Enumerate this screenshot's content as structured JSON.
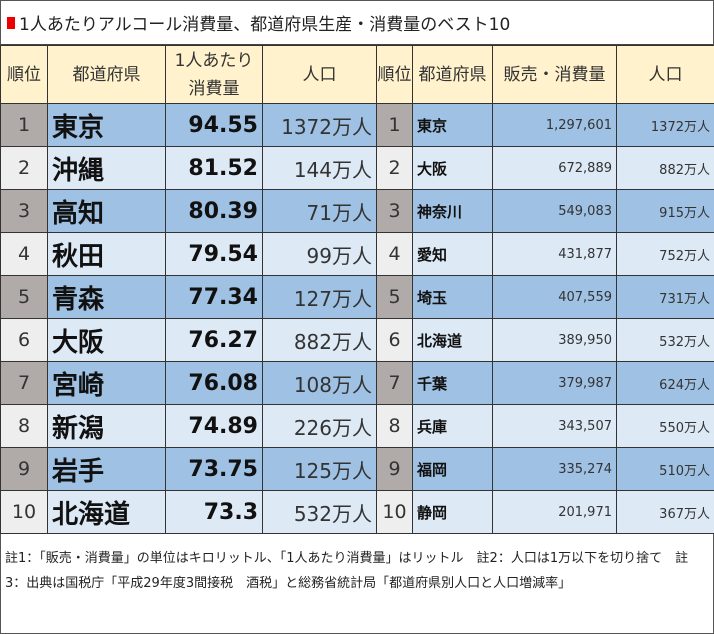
{
  "title": "1人あたりアルコール消費量、都道府県生産・消費量のベスト10",
  "headers": [
    "順位",
    "都道府県",
    "1人あたり消費量",
    "人口",
    "順位",
    "都道府県",
    "販売・消費量",
    "人口"
  ],
  "rows": [
    {
      "rank": "1",
      "pref": "東京",
      "per_capita": "94.55",
      "pop": "1372万人",
      "rank2": "1",
      "pref2": "東京",
      "sales": "1,297,601",
      "pop2": "1372万人"
    },
    {
      "rank": "2",
      "pref": "沖縄",
      "per_capita": "81.52",
      "pop": "144万人",
      "rank2": "2",
      "pref2": "大阪",
      "sales": "672,889",
      "pop2": "882万人"
    },
    {
      "rank": "3",
      "pref": "高知",
      "per_capita": "80.39",
      "pop": "71万人",
      "rank2": "3",
      "pref2": "神奈川",
      "sales": "549,083",
      "pop2": "915万人"
    },
    {
      "rank": "4",
      "pref": "秋田",
      "per_capita": "79.54",
      "pop": "99万人",
      "rank2": "4",
      "pref2": "愛知",
      "sales": "431,877",
      "pop2": "752万人"
    },
    {
      "rank": "5",
      "pref": "青森",
      "per_capita": "77.34",
      "pop": "127万人",
      "rank2": "5",
      "pref2": "埼玉",
      "sales": "407,559",
      "pop2": "731万人"
    },
    {
      "rank": "6",
      "pref": "大阪",
      "per_capita": "76.27",
      "pop": "882万人",
      "rank2": "6",
      "pref2": "北海道",
      "sales": "389,950",
      "pop2": "532万人"
    },
    {
      "rank": "7",
      "pref": "宮崎",
      "per_capita": "76.08",
      "pop": "108万人",
      "rank2": "7",
      "pref2": "千葉",
      "sales": "379,987",
      "pop2": "624万人"
    },
    {
      "rank": "8",
      "pref": "新潟",
      "per_capita": "74.89",
      "pop": "226万人",
      "rank2": "8",
      "pref2": "兵庫",
      "sales": "343,507",
      "pop2": "550万人"
    },
    {
      "rank": "9",
      "pref": "岩手",
      "per_capita": "73.75",
      "pop": "125万人",
      "rank2": "9",
      "pref2": "福岡",
      "sales": "335,274",
      "pop2": "510万人"
    },
    {
      "rank": "10",
      "pref": "北海道",
      "per_capita": "73.3",
      "pop": "532万人",
      "rank2": "10",
      "pref2": "静岡",
      "sales": "201,971",
      "pop2": "367万人"
    }
  ],
  "note": "註1：「販売・消費量」の単位はキロリットル、「1人あたり消費量」はリットル　註2：人口は1万以下を切り捨て　註3：出典は国税庁「平成29年度3間接税　酒税」と総務省統計局「都道府県別人口と人口増減率」",
  "colors": {
    "header": "#fff2cc",
    "odd_rank": "#b0aaa8",
    "odd_cell": "#9fc1e3",
    "even_rank": "#eeeeee",
    "even_cell": "#dde9f5",
    "title_marker": "#ee0000"
  }
}
